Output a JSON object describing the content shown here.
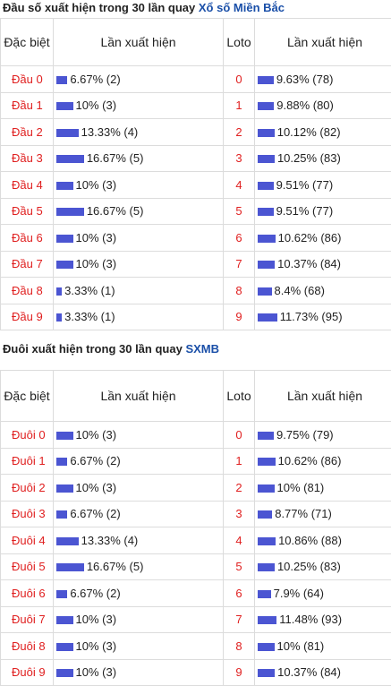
{
  "sections": [
    {
      "title": "Đầu số xuất hiện trong 30 lần quay",
      "link": "Xổ số Miền Bắc",
      "headers": [
        "Đặc biệt",
        "Lần xuất hiện",
        "Loto",
        "Lần xuất hiện"
      ],
      "rows": [
        [
          "Đầu 0",
          "6.67% (2)",
          "0",
          "9.63% (78)"
        ],
        [
          "Đầu 1",
          "10% (3)",
          "1",
          "9.88% (80)"
        ],
        [
          "Đầu 2",
          "13.33% (4)",
          "2",
          "10.12% (82)"
        ],
        [
          "Đầu 3",
          "16.67% (5)",
          "3",
          "10.25% (83)"
        ],
        [
          "Đầu 4",
          "10% (3)",
          "4",
          "9.51% (77)"
        ],
        [
          "Đầu 5",
          "16.67% (5)",
          "5",
          "9.51% (77)"
        ],
        [
          "Đầu 6",
          "10% (3)",
          "6",
          "10.62% (86)"
        ],
        [
          "Đầu 7",
          "10% (3)",
          "7",
          "10.37% (84)"
        ],
        [
          "Đầu 8",
          "3.33% (1)",
          "8",
          "8.4% (68)"
        ],
        [
          "Đầu 9",
          "3.33% (1)",
          "9",
          "11.73% (95)"
        ]
      ]
    },
    {
      "title": "Đuôi xuất hiện trong 30 lần quay",
      "link": "SXMB",
      "headers": [
        "Đặc biệt",
        "Lần xuất hiện",
        "Loto",
        "Lần xuất hiện"
      ],
      "rows": [
        [
          "Đuôi 0",
          "10% (3)",
          "0",
          "9.75% (79)"
        ],
        [
          "Đuôi 1",
          "6.67% (2)",
          "1",
          "10.62% (86)"
        ],
        [
          "Đuôi 2",
          "10% (3)",
          "2",
          "10% (81)"
        ],
        [
          "Đuôi 3",
          "6.67% (2)",
          "3",
          "8.77% (71)"
        ],
        [
          "Đuôi 4",
          "13.33% (4)",
          "4",
          "10.86% (88)"
        ],
        [
          "Đuôi 5",
          "16.67% (5)",
          "5",
          "10.25% (83)"
        ],
        [
          "Đuôi 6",
          "6.67% (2)",
          "6",
          "7.9% (64)"
        ],
        [
          "Đuôi 7",
          "10% (3)",
          "7",
          "11.48% (93)"
        ],
        [
          "Đuôi 8",
          "10% (3)",
          "8",
          "10% (81)"
        ],
        [
          "Đuôi 9",
          "10% (3)",
          "9",
          "10.37% (84)"
        ]
      ]
    }
  ]
}
